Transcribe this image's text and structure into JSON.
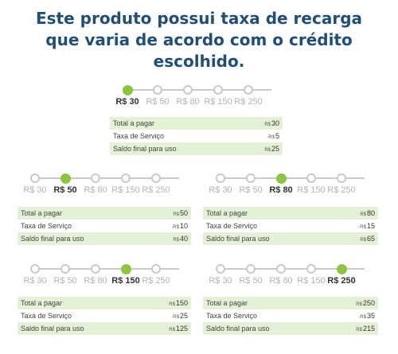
{
  "title_lines": [
    "Este produto possui taxa de recarga",
    "que varia de acordo com o crédito",
    "escolhido."
  ],
  "labels": {
    "total": "Total a pagar",
    "fee": "Taxa de Serviço",
    "final": "Saldo final para uso",
    "currency": "R$",
    "fee_currency": "-R$"
  },
  "accent_color": "#8cc63f",
  "title_color": "#1f4e79",
  "options": [
    "R$ 30",
    "R$ 50",
    "R$ 80",
    "R$ 150",
    "R$ 250"
  ],
  "panels": [
    {
      "selected": 0,
      "total": "30",
      "fee": "5",
      "final": "25"
    },
    {
      "selected": 1,
      "total": "50",
      "fee": "10",
      "final": "40"
    },
    {
      "selected": 2,
      "total": "80",
      "fee": "15",
      "final": "65"
    },
    {
      "selected": 3,
      "total": "150",
      "fee": "25",
      "final": "125"
    },
    {
      "selected": 4,
      "total": "250",
      "fee": "35",
      "final": "215"
    }
  ]
}
